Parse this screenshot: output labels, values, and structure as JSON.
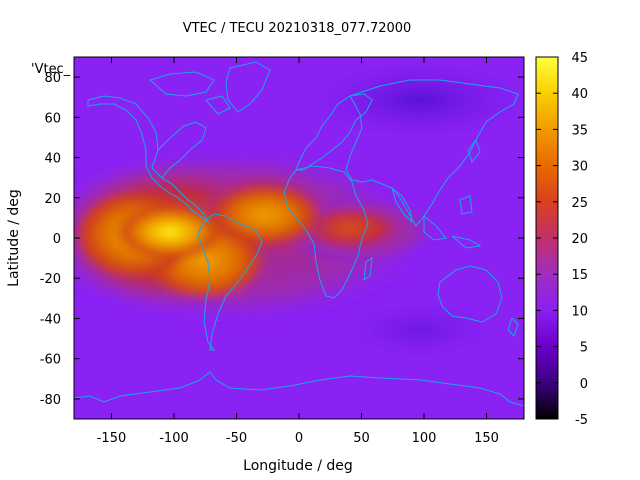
{
  "chart_data": {
    "type": "heatmap",
    "title": "VTEC / TECU 20210318_077.72000",
    "xlabel": "Longitude / deg",
    "ylabel": "Latitude / deg",
    "legend_key": "'Vtec_",
    "xlim": [
      -180,
      180
    ],
    "ylim": [
      -90,
      90
    ],
    "x_ticks": [
      -150,
      -100,
      -50,
      0,
      50,
      100,
      150
    ],
    "y_ticks": [
      -80,
      -60,
      -40,
      -20,
      0,
      20,
      40,
      60,
      80
    ],
    "colorbar": {
      "range": [
        -5,
        45
      ],
      "ticks": [
        -5,
        0,
        5,
        10,
        15,
        20,
        25,
        30,
        35,
        40,
        45
      ],
      "palette": [
        "#000000",
        "#3d0080",
        "#6a00c8",
        "#8a1ff0",
        "#a02ec0",
        "#c2306a",
        "#d8401f",
        "#e86a00",
        "#f29a00",
        "#f9cf00",
        "#ffff40"
      ]
    },
    "background_value": 10,
    "features": [
      {
        "name": "equatorial-anomaly-crest-main",
        "lon": -105,
        "lat": 3,
        "peak_vtec": 43
      },
      {
        "name": "equatorial-anomaly-south",
        "lon": -80,
        "lat": -18,
        "peak_vtec": 30
      },
      {
        "name": "equatorial-anomaly-atlantic",
        "lon": -20,
        "lat": 10,
        "peak_vtec": 33
      },
      {
        "name": "equatorial-anomaly-east-end",
        "lon": 60,
        "lat": 3,
        "peak_vtec": 22
      }
    ]
  }
}
